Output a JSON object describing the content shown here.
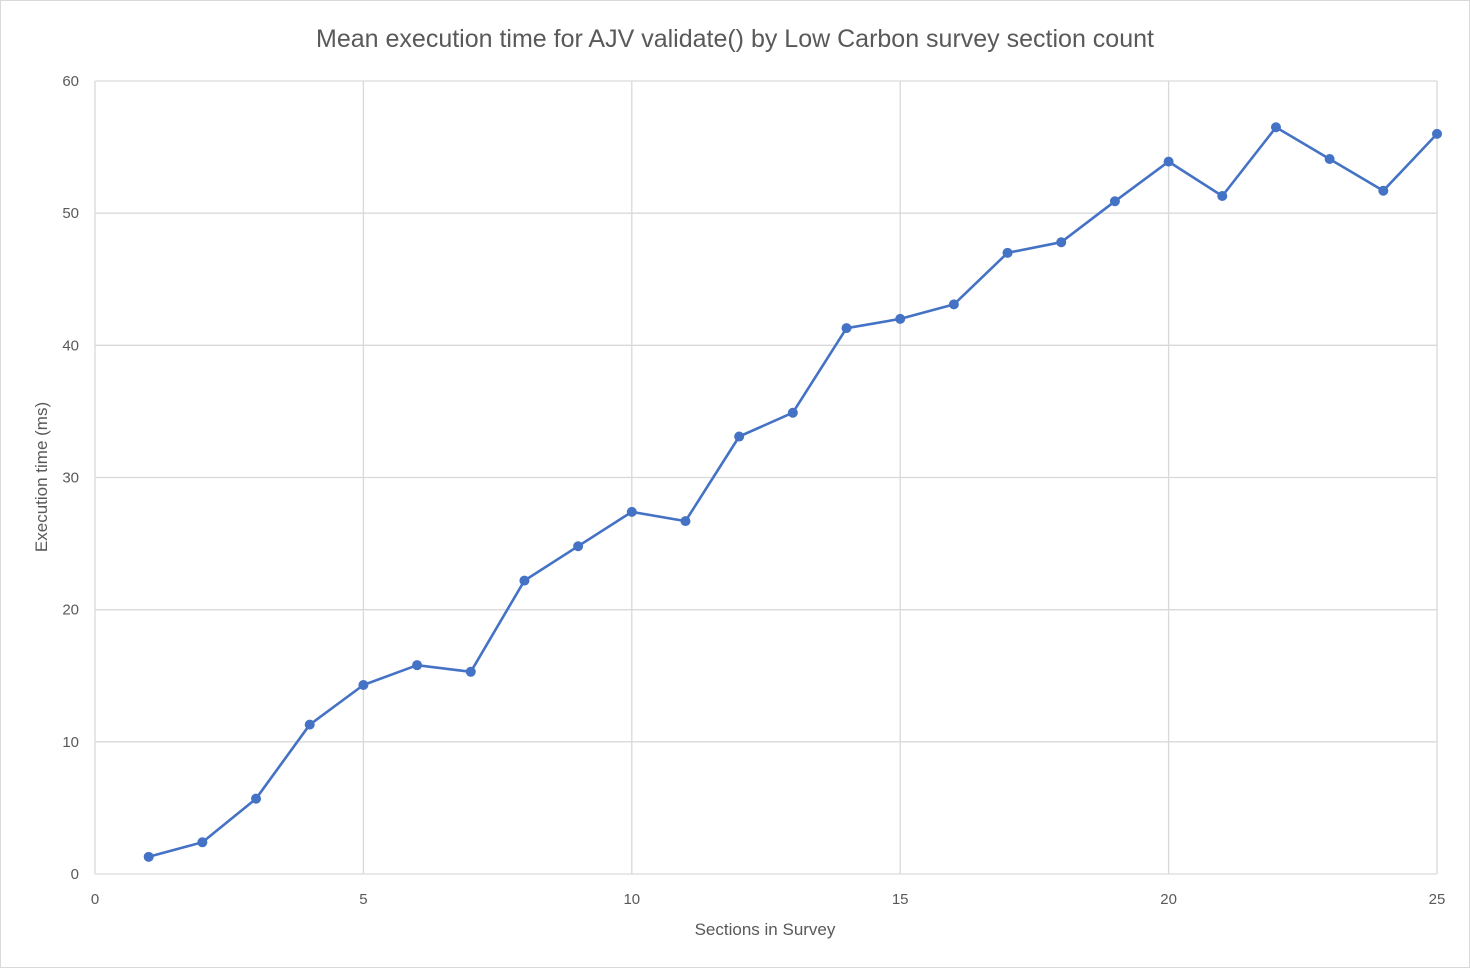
{
  "chart_data": {
    "type": "line",
    "title": "Mean execution time for AJV validate() by Low Carbon survey section count",
    "xlabel": "Sections in Survey",
    "ylabel": "Execution time (ms)",
    "xlim": [
      0,
      25
    ],
    "ylim": [
      0,
      60
    ],
    "x_ticks": [
      "0",
      "5",
      "10",
      "15",
      "20",
      "25"
    ],
    "y_ticks": [
      "0",
      "10",
      "20",
      "30",
      "40",
      "50",
      "60"
    ],
    "grid": true,
    "legend": "none",
    "series": [
      {
        "color": "#4472c4",
        "x": [
          1,
          2,
          3,
          4,
          5,
          6,
          7,
          8,
          9,
          10,
          11,
          12,
          13,
          14,
          15,
          16,
          17,
          18,
          19,
          20,
          21,
          22,
          23,
          24,
          25
        ],
        "y": [
          1.3,
          2.4,
          5.7,
          11.3,
          14.3,
          15.8,
          15.3,
          22.2,
          24.8,
          27.4,
          26.7,
          33.1,
          34.9,
          41.3,
          42.0,
          43.1,
          47.0,
          47.8,
          50.9,
          53.9,
          51.3,
          56.5,
          54.1,
          51.7,
          56.0
        ]
      }
    ]
  }
}
